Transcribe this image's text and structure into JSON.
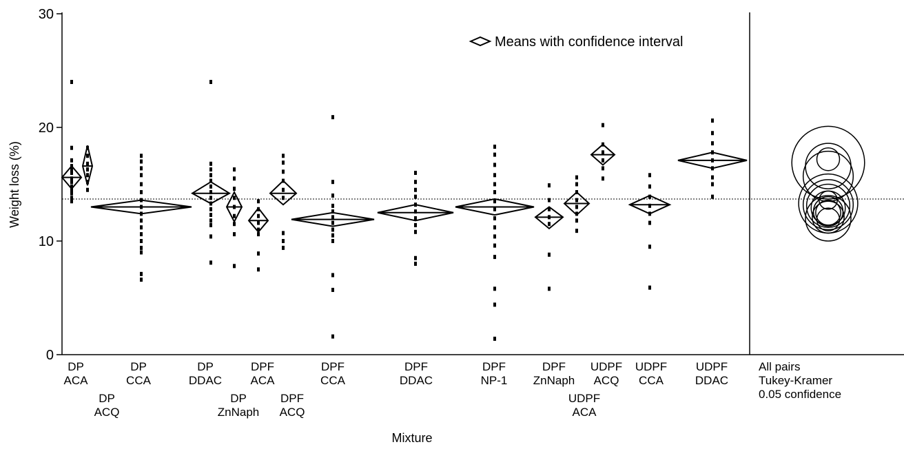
{
  "chart_data": {
    "type": "scatter",
    "xlabel": "Mixture",
    "ylabel": "Weight loss (%)",
    "ylim": [
      0,
      30
    ],
    "yticks": [
      0,
      10,
      20,
      30
    ],
    "grand_mean": 13.7,
    "legend": {
      "label": "Means with confidence interval",
      "placement": "top-right"
    },
    "comparison": {
      "lines": [
        "All pairs",
        "Tukey-Kramer",
        "0.05 confidence"
      ]
    },
    "groups": [
      {
        "name": "DP ACA",
        "label": [
          "DP",
          "ACA"
        ],
        "mean": 15.6,
        "ci_low": 14.6,
        "ci_high": 16.6,
        "points": [
          24,
          18.2,
          17.1,
          16.6,
          16.3,
          16.0,
          15.5,
          15.2,
          14.8,
          14.5,
          14.2,
          13.8,
          13.5
        ]
      },
      {
        "name": "DP ACQ",
        "label": [
          "DP",
          "ACQ"
        ],
        "mean": 16.6,
        "ci_low": 14.9,
        "ci_high": 18.4,
        "points": [
          18.2,
          17.5,
          16.8,
          16.3,
          15.8,
          15.2,
          14.5
        ]
      },
      {
        "name": "DP CCA",
        "label": [
          "DP",
          "CCA"
        ],
        "mean": 13.0,
        "ci_low": 12.4,
        "ci_high": 13.6,
        "points": [
          17.5,
          17.0,
          16.4,
          15.8,
          15.0,
          14.3,
          13.6,
          13.0,
          12.4,
          11.8,
          11.2,
          10.6,
          10.0,
          9.4,
          9.0,
          7.1,
          6.6
        ]
      },
      {
        "name": "DP DDAC",
        "label": [
          "DP",
          "DDAC"
        ],
        "mean": 14.2,
        "ci_low": 13.3,
        "ci_high": 15.2,
        "points": [
          24,
          16.8,
          16.3,
          15.8,
          15.3,
          14.8,
          14.3,
          13.8,
          13.3,
          12.8,
          12.3,
          11.8,
          11.4,
          10.4,
          8.1
        ]
      },
      {
        "name": "DP ZnNaph",
        "label": [
          "DP",
          "ZnNaph"
        ],
        "mean": 13.0,
        "ci_low": 11.7,
        "ci_high": 14.3,
        "points": [
          16.3,
          15.5,
          14.6,
          13.8,
          13.0,
          12.2,
          11.5,
          10.6,
          7.8
        ]
      },
      {
        "name": "DPF ACA",
        "label": [
          "DPF",
          "ACA"
        ],
        "mean": 11.8,
        "ci_low": 10.8,
        "ci_high": 12.9,
        "points": [
          13.5,
          12.8,
          12.2,
          11.6,
          11.0,
          10.6,
          8.9,
          7.5
        ]
      },
      {
        "name": "DPF ACQ",
        "label": [
          "DPF",
          "ACQ"
        ],
        "mean": 14.2,
        "ci_low": 13.2,
        "ci_high": 15.3,
        "points": [
          17.5,
          16.9,
          16.1,
          15.3,
          14.5,
          13.8,
          10.7,
          10.0,
          9.4
        ]
      },
      {
        "name": "DPF CCA",
        "label": [
          "DPF",
          "CCA"
        ],
        "mean": 11.9,
        "ci_low": 11.3,
        "ci_high": 12.5,
        "points": [
          20.9,
          15.2,
          14.0,
          13.1,
          12.6,
          12.1,
          11.6,
          11.0,
          10.5,
          10.0,
          7.0,
          5.7,
          1.6
        ]
      },
      {
        "name": "DPF DDAC",
        "label": [
          "DPF",
          "DDAC"
        ],
        "mean": 12.5,
        "ci_low": 11.8,
        "ci_high": 13.2,
        "points": [
          16.0,
          15.2,
          14.5,
          13.9,
          13.2,
          12.6,
          12.0,
          11.4,
          10.8,
          8.5,
          8.0
        ]
      },
      {
        "name": "DPF NP-1",
        "label": [
          "DPF",
          "NP-1"
        ],
        "mean": 13.0,
        "ci_low": 12.3,
        "ci_high": 13.7,
        "points": [
          18.3,
          17.6,
          16.7,
          15.8,
          15.0,
          14.3,
          13.5,
          12.8,
          12.0,
          11.2,
          10.4,
          9.6,
          8.6,
          5.8,
          4.4,
          1.4
        ]
      },
      {
        "name": "DPF ZnNaph",
        "label": [
          "DPF",
          "ZnNaph"
        ],
        "mean": 12.1,
        "ci_low": 11.1,
        "ci_high": 13.0,
        "points": [
          14.9,
          13.6,
          12.8,
          12.1,
          11.5,
          8.8,
          5.8
        ]
      },
      {
        "name": "UDPF ACA",
        "label": [
          "UDPF",
          "ACA"
        ],
        "mean": 13.3,
        "ci_low": 12.3,
        "ci_high": 14.3,
        "points": [
          15.6,
          15.0,
          14.3,
          13.6,
          13.0,
          12.4,
          11.8,
          10.9
        ]
      },
      {
        "name": "UDPF ACQ",
        "label": [
          "UDPF",
          "ACQ"
        ],
        "mean": 17.6,
        "ci_low": 16.7,
        "ci_high": 18.5,
        "points": [
          20.2,
          18.5,
          17.8,
          17.1,
          16.4,
          15.5
        ]
      },
      {
        "name": "UDPF CCA",
        "label": [
          "UDPF",
          "CCA"
        ],
        "mean": 13.2,
        "ci_low": 12.4,
        "ci_high": 14.0,
        "points": [
          15.8,
          14.8,
          13.9,
          13.1,
          12.4,
          11.6,
          9.5,
          5.9
        ]
      },
      {
        "name": "UDPF DDAC",
        "label": [
          "UDPF",
          "DDAC"
        ],
        "mean": 17.1,
        "ci_low": 16.4,
        "ci_high": 17.8,
        "points": [
          20.6,
          19.5,
          18.6,
          17.8,
          17.1,
          16.4,
          15.6,
          15.0,
          13.9
        ]
      }
    ],
    "circles": [
      {
        "center": 16.9,
        "radius": 3.2
      },
      {
        "center": 16.6,
        "radius": 2.0
      },
      {
        "center": 15.7,
        "radius": 2.2
      },
      {
        "center": 17.2,
        "radius": 1.0
      },
      {
        "center": 13.3,
        "radius": 2.6
      },
      {
        "center": 13.2,
        "radius": 2.2
      },
      {
        "center": 13.1,
        "radius": 1.9
      },
      {
        "center": 12.9,
        "radius": 1.5
      },
      {
        "center": 12.6,
        "radius": 1.3
      },
      {
        "center": 12.5,
        "radius": 1.1
      },
      {
        "center": 12.1,
        "radius": 1.4
      },
      {
        "center": 11.9,
        "radius": 1.0
      },
      {
        "center": 12.0,
        "radius": 2.0
      },
      {
        "center": 13.6,
        "radius": 0.8
      }
    ]
  }
}
